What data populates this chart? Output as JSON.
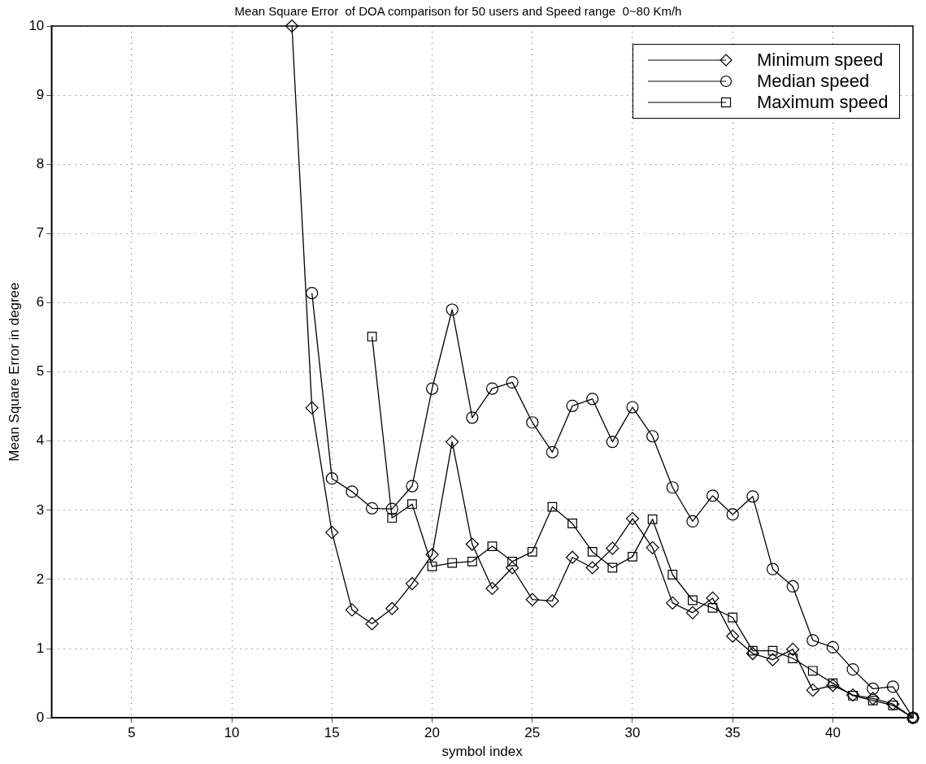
{
  "chart_data": {
    "type": "line",
    "title": "Mean Square Error  of DOA comparison for 50 users and Speed range  0~80 Km/h",
    "xlabel": "symbol index",
    "ylabel": "Mean Square Error in degree",
    "x": [
      13,
      14,
      15,
      16,
      17,
      18,
      19,
      20,
      21,
      22,
      23,
      24,
      25,
      26,
      27,
      28,
      29,
      30,
      31,
      32,
      33,
      34,
      35,
      36,
      37,
      38,
      39,
      40,
      41,
      42,
      43,
      44
    ],
    "series": [
      {
        "name": "Minimum speed",
        "color": "#000000",
        "marker": "diamond",
        "values": [
          10,
          4.48,
          2.68,
          1.56,
          1.36,
          1.58,
          1.94,
          2.36,
          3.99,
          2.51,
          1.87,
          2.17,
          1.71,
          1.69,
          2.32,
          2.17,
          2.45,
          2.88,
          2.46,
          1.66,
          1.52,
          1.73,
          1.18,
          0.93,
          0.84,
          0.99,
          0.4,
          0.47,
          0.33,
          0.28,
          0.2,
          0
        ]
      },
      {
        "name": "Median speed",
        "color": "#000000",
        "marker": "circle",
        "values": [
          null,
          6.14,
          3.46,
          3.27,
          3.03,
          3.02,
          3.35,
          4.76,
          5.9,
          4.34,
          4.76,
          4.85,
          4.27,
          3.84,
          4.51,
          4.61,
          3.99,
          4.49,
          4.07,
          3.33,
          2.84,
          3.21,
          2.94,
          3.2,
          2.15,
          1.9,
          1.12,
          1.02,
          0.7,
          0.42,
          0.45,
          0
        ]
      },
      {
        "name": "Maximum speed",
        "color": "#000000",
        "marker": "square",
        "values": [
          null,
          null,
          null,
          null,
          5.51,
          2.89,
          3.09,
          2.19,
          2.24,
          2.26,
          2.48,
          2.26,
          2.4,
          3.05,
          2.81,
          2.4,
          2.17,
          2.33,
          2.87,
          2.07,
          1.7,
          1.59,
          1.45,
          0.97,
          0.97,
          0.86,
          0.68,
          0.5,
          0.32,
          0.25,
          0.18,
          0
        ]
      }
    ],
    "xlim": [
      1,
      44
    ],
    "xticks": [
      5,
      10,
      15,
      20,
      25,
      30,
      35,
      40
    ],
    "ylim": [
      0,
      10
    ],
    "yticks": [
      0,
      1,
      2,
      3,
      4,
      5,
      6,
      7,
      8,
      9,
      10
    ],
    "grid": true,
    "legend": "top right",
    "line_style": "solid"
  }
}
